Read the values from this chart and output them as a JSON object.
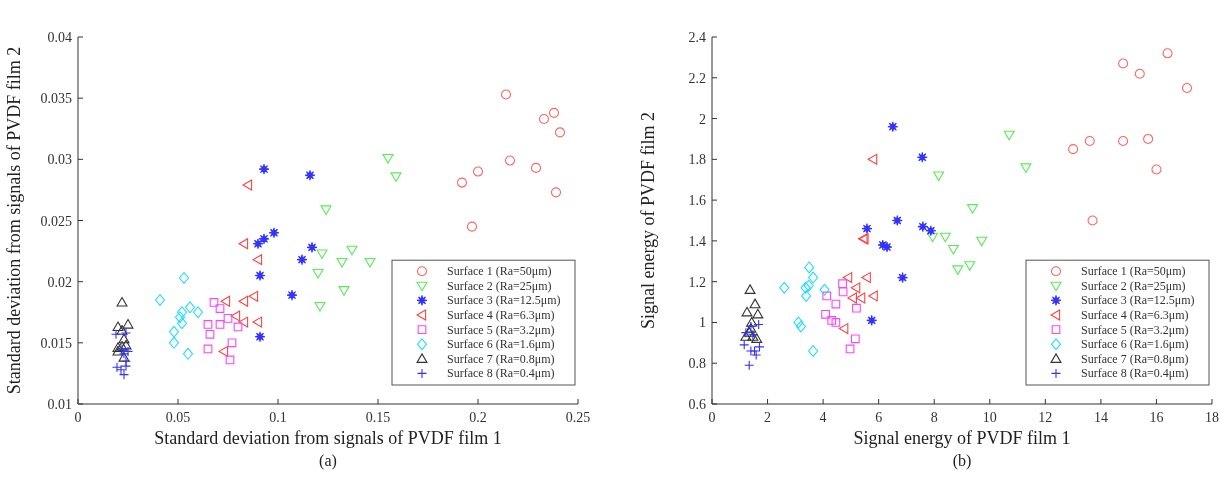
{
  "chart_data": [
    {
      "type": "scatter",
      "xlabel": "Standard deviation from signals of PVDF film 1",
      "ylabel": "Standard deviation from signals of PVDF film 2",
      "annotations": [
        "(a)"
      ],
      "xlim": [
        0,
        0.25
      ],
      "ylim": [
        0.01,
        0.04
      ],
      "xticks": [
        0,
        0.05,
        0.1,
        0.15,
        0.2,
        0.25
      ],
      "yticks": [
        0.01,
        0.015,
        0.02,
        0.025,
        0.03,
        0.035,
        0.04
      ],
      "grid": false,
      "legend": "bottom right",
      "series": [
        {
          "name": "Surface 1 (Ra=50μm)",
          "color": "#ff6666",
          "marker": "circle",
          "x": [
            0.214,
            0.238,
            0.233,
            0.241,
            0.216,
            0.2,
            0.192,
            0.229,
            0.239,
            0.197
          ],
          "values": [
            0.0353,
            0.0338,
            0.0333,
            0.0322,
            0.0299,
            0.029,
            0.0281,
            0.0293,
            0.0273,
            0.0245
          ]
        },
        {
          "name": "Surface 2 (Ra=25μm)",
          "color": "#55ee55",
          "marker": "triangle-down",
          "x": [
            0.155,
            0.159,
            0.124,
            0.122,
            0.137,
            0.132,
            0.146,
            0.12,
            0.133,
            0.121
          ],
          "values": [
            0.0301,
            0.0286,
            0.0259,
            0.0223,
            0.0226,
            0.0216,
            0.0216,
            0.0207,
            0.0193,
            0.018
          ]
        },
        {
          "name": "Surface 3 (Ra=12.5μm)",
          "color": "#3333ff",
          "marker": "star",
          "x": [
            0.093,
            0.116,
            0.098,
            0.093,
            0.09,
            0.117,
            0.112,
            0.091,
            0.107,
            0.091
          ],
          "values": [
            0.0292,
            0.0287,
            0.024,
            0.0235,
            0.0231,
            0.0228,
            0.0218,
            0.0205,
            0.0189,
            0.0155
          ]
        },
        {
          "name": "Surface 4 (Ra=6.3μm)",
          "color": "#ff4444",
          "marker": "triangle-left",
          "x": [
            0.085,
            0.083,
            0.09,
            0.088,
            0.083,
            0.074,
            0.079,
            0.083,
            0.09,
            0.073
          ],
          "values": [
            0.0279,
            0.0231,
            0.0218,
            0.0188,
            0.0184,
            0.0184,
            0.0172,
            0.0167,
            0.0167,
            0.0143
          ]
        },
        {
          "name": "Surface 5 (Ra=3.2μm)",
          "color": "#ff44ff",
          "marker": "square",
          "x": [
            0.068,
            0.071,
            0.065,
            0.071,
            0.075,
            0.08,
            0.066,
            0.065,
            0.077,
            0.076
          ],
          "values": [
            0.0183,
            0.0178,
            0.0165,
            0.0165,
            0.017,
            0.0163,
            0.0157,
            0.0145,
            0.015,
            0.0136
          ]
        },
        {
          "name": "Surface 6 (Ra=1.6μm)",
          "color": "#22ddff",
          "marker": "diamond",
          "x": [
            0.041,
            0.053,
            0.056,
            0.06,
            0.052,
            0.051,
            0.052,
            0.048,
            0.048,
            0.055
          ],
          "values": [
            0.0185,
            0.0203,
            0.0179,
            0.0175,
            0.0175,
            0.0171,
            0.0166,
            0.0159,
            0.015,
            0.0141
          ]
        },
        {
          "name": "Surface 7 (Ra=0.8μm)",
          "color": "#333333",
          "marker": "triangle",
          "x": [
            0.022,
            0.02,
            0.025,
            0.022,
            0.023,
            0.02,
            0.022,
            0.02,
            0.023,
            0.024
          ],
          "values": [
            0.0183,
            0.0163,
            0.0165,
            0.016,
            0.0153,
            0.0146,
            0.0147,
            0.0143,
            0.0138,
            0.0148
          ]
        },
        {
          "name": "Surface 8 (Ra=0.4μm)",
          "color": "#3333ff",
          "marker": "cross",
          "x": [
            0.019,
            0.024,
            0.025,
            0.023,
            0.024,
            0.024,
            0.0215,
            0.0195,
            0.023,
            0.022
          ],
          "values": [
            0.0157,
            0.0158,
            0.0143,
            0.0141,
            0.0135,
            0.0131,
            0.0128,
            0.013,
            0.0124,
            0.0145
          ]
        }
      ]
    },
    {
      "type": "scatter",
      "xlabel": "Signal energy of PVDF film 1",
      "ylabel": "Signal energy of PVDF film 2",
      "annotations": [
        "(b)"
      ],
      "xlim": [
        0,
        18
      ],
      "ylim": [
        0.6,
        2.4
      ],
      "xticks": [
        0,
        2,
        4,
        6,
        8,
        10,
        12,
        14,
        16,
        18
      ],
      "yticks": [
        0.6,
        0.8,
        1,
        1.2,
        1.4,
        1.6,
        1.8,
        2,
        2.2,
        2.4
      ],
      "grid": false,
      "legend": "bottom right",
      "series": [
        {
          "name": "Surface 1 (Ra=50μm)",
          "color": "#ff6666",
          "marker": "circle",
          "x": [
            14.8,
            16.4,
            15.4,
            17.1,
            13.0,
            13.6,
            14.8,
            15.7,
            16.0,
            13.7
          ],
          "values": [
            2.27,
            2.32,
            2.22,
            2.15,
            1.85,
            1.89,
            1.89,
            1.9,
            1.75,
            1.5
          ]
        },
        {
          "name": "Surface 2 (Ra=25μm)",
          "color": "#55ee55",
          "marker": "triangle-down",
          "x": [
            10.7,
            11.3,
            8.16,
            9.38,
            9.71,
            7.94,
            8.4,
            8.69,
            8.85,
            9.28
          ],
          "values": [
            1.92,
            1.76,
            1.72,
            1.56,
            1.4,
            1.42,
            1.42,
            1.36,
            1.26,
            1.28
          ]
        },
        {
          "name": "Surface 3 (Ra=12.5μm)",
          "color": "#3333ff",
          "marker": "star",
          "x": [
            6.51,
            7.57,
            6.67,
            5.58,
            7.59,
            7.88,
            6.15,
            6.3,
            6.86,
            5.75
          ],
          "values": [
            1.96,
            1.81,
            1.5,
            1.46,
            1.47,
            1.45,
            1.38,
            1.37,
            1.22,
            1.01
          ]
        },
        {
          "name": "Surface 4 (Ra=6.3μm)",
          "color": "#ff4444",
          "marker": "triangle-left",
          "x": [
            5.8,
            5.49,
            5.45,
            4.9,
            5.57,
            5.19,
            5.82,
            5.07,
            5.37,
            4.76
          ],
          "values": [
            1.8,
            1.41,
            1.41,
            1.22,
            1.22,
            1.17,
            1.13,
            1.12,
            1.12,
            0.97
          ]
        },
        {
          "name": "Surface 5 (Ra=3.2μm)",
          "color": "#ff44ff",
          "marker": "square",
          "x": [
            4.7,
            4.72,
            4.13,
            4.46,
            5.2,
            4.09,
            4.31,
            4.46,
            5.16,
            4.97
          ],
          "values": [
            1.19,
            1.15,
            1.13,
            1.09,
            1.07,
            1.04,
            1.01,
            1.0,
            0.92,
            0.87
          ]
        },
        {
          "name": "Surface 6 (Ra=1.6μm)",
          "color": "#22ddff",
          "marker": "diamond",
          "x": [
            3.5,
            2.6,
            3.37,
            3.48,
            3.64,
            4.05,
            3.39,
            3.11,
            3.2,
            3.64
          ],
          "values": [
            1.27,
            1.17,
            1.17,
            1.18,
            1.22,
            1.16,
            1.13,
            1.0,
            0.98,
            0.86
          ]
        },
        {
          "name": "Surface 7 (Ra=0.8μm)",
          "color": "#333333",
          "marker": "triangle",
          "x": [
            1.37,
            1.55,
            1.26,
            1.65,
            1.43,
            1.4,
            1.34,
            1.22,
            1.47,
            1.61
          ],
          "values": [
            1.16,
            1.09,
            1.05,
            1.04,
            1.0,
            0.97,
            0.95,
            0.93,
            0.93,
            0.92
          ]
        },
        {
          "name": "Surface 8 (Ra=0.4μm)",
          "color": "#3333ff",
          "marker": "cross",
          "x": [
            1.68,
            1.4,
            1.22,
            1.47,
            1.16,
            1.71,
            1.4,
            1.53,
            1.59,
            1.34
          ],
          "values": [
            0.99,
            0.98,
            0.95,
            0.94,
            0.89,
            0.88,
            0.86,
            0.86,
            0.84,
            0.79
          ]
        }
      ]
    }
  ]
}
